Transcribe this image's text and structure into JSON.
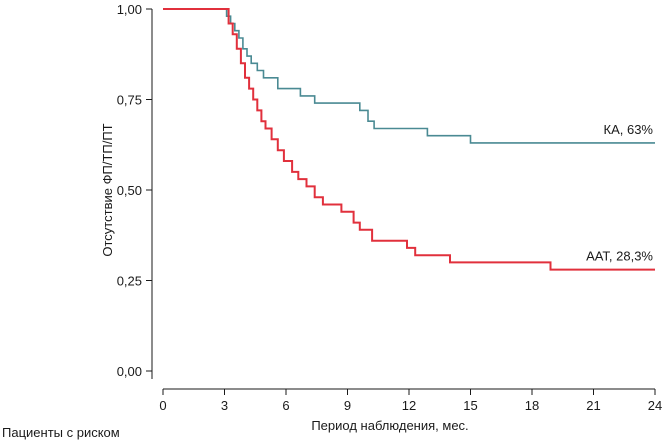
{
  "chart_data": {
    "type": "line",
    "title": "",
    "xlabel": "Период наблюдения, мес.",
    "ylabel": "Отсутствие ФП/ТП/ПТ",
    "row_label": "Пациенты с риском",
    "xlim": [
      0,
      24
    ],
    "ylim": [
      0,
      1
    ],
    "x_ticks": [
      0,
      3,
      6,
      9,
      12,
      15,
      18,
      21,
      24
    ],
    "x_tick_labels": [
      "0",
      "3",
      "6",
      "9",
      "12",
      "15",
      "18",
      "21",
      "24"
    ],
    "y_ticks": [
      0,
      0.25,
      0.5,
      0.75,
      1
    ],
    "y_tick_labels": [
      "0,00",
      "0,25",
      "0,50",
      "0,75",
      "1,00"
    ],
    "grid": false,
    "series": [
      {
        "name": "КА, 63%",
        "color": "#4a8a93",
        "step": true,
        "points": [
          [
            0,
            1.0
          ],
          [
            3.1,
            0.98
          ],
          [
            3.3,
            0.96
          ],
          [
            3.5,
            0.94
          ],
          [
            3.7,
            0.92
          ],
          [
            3.9,
            0.89
          ],
          [
            4.1,
            0.87
          ],
          [
            4.3,
            0.85
          ],
          [
            4.6,
            0.83
          ],
          [
            4.9,
            0.81
          ],
          [
            5.6,
            0.78
          ],
          [
            6.7,
            0.76
          ],
          [
            7.4,
            0.74
          ],
          [
            9.6,
            0.72
          ],
          [
            10.0,
            0.69
          ],
          [
            10.3,
            0.67
          ],
          [
            12.9,
            0.65
          ],
          [
            15.0,
            0.63
          ],
          [
            24.0,
            0.63
          ]
        ]
      },
      {
        "name": "ААТ, 28,3%",
        "color": "#e1303c",
        "step": true,
        "points": [
          [
            0,
            1.0
          ],
          [
            3.2,
            0.96
          ],
          [
            3.4,
            0.93
          ],
          [
            3.6,
            0.89
          ],
          [
            3.8,
            0.85
          ],
          [
            4.0,
            0.81
          ],
          [
            4.2,
            0.78
          ],
          [
            4.4,
            0.75
          ],
          [
            4.6,
            0.72
          ],
          [
            4.8,
            0.69
          ],
          [
            5.0,
            0.67
          ],
          [
            5.3,
            0.64
          ],
          [
            5.6,
            0.61
          ],
          [
            5.9,
            0.58
          ],
          [
            6.3,
            0.55
          ],
          [
            6.6,
            0.53
          ],
          [
            7.0,
            0.51
          ],
          [
            7.4,
            0.48
          ],
          [
            7.8,
            0.46
          ],
          [
            8.7,
            0.44
          ],
          [
            9.3,
            0.41
          ],
          [
            9.6,
            0.39
          ],
          [
            10.2,
            0.36
          ],
          [
            11.9,
            0.34
          ],
          [
            12.3,
            0.32
          ],
          [
            14.0,
            0.3
          ],
          [
            18.9,
            0.28
          ],
          [
            24.0,
            0.28
          ]
        ]
      }
    ]
  }
}
